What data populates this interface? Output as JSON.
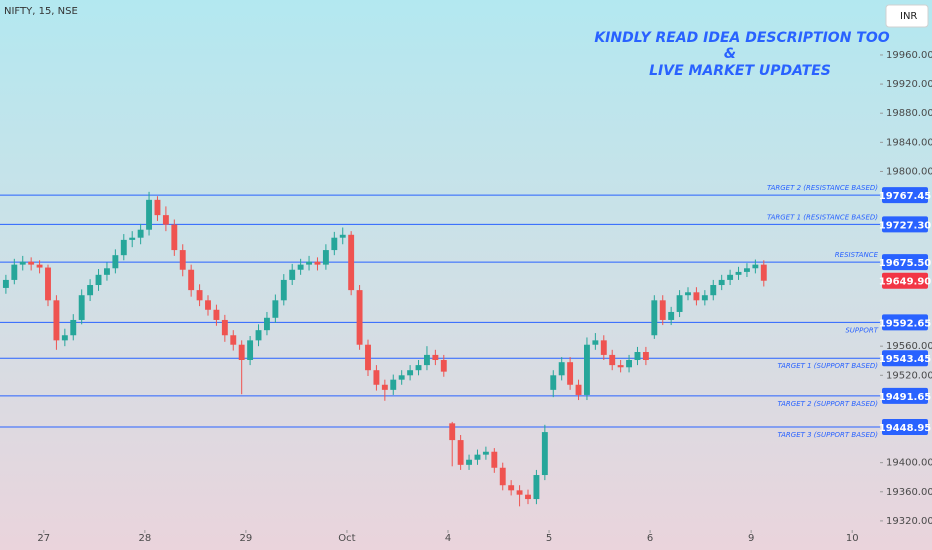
{
  "chart_data": {
    "type": "candlestick",
    "symbol": "NIFTY, 15, NSE",
    "currency": "INR",
    "headline": [
      "KINDLY READ IDEA DESCRIPTION TOO",
      "&",
      "LIVE MARKET UPDATES"
    ],
    "up_color": "#26a69a",
    "down_color": "#ef5350",
    "level_color": "#2962ff",
    "last_price": 19649.9,
    "last_price_label": "19649.90",
    "last_price_color": "#f23645",
    "xlim": [
      -5.2,
      99.3
    ],
    "xticks": [
      {
        "value": 0,
        "label": "27"
      },
      {
        "value": 12,
        "label": "28"
      },
      {
        "value": 24,
        "label": "29"
      },
      {
        "value": 36,
        "label": "Oct"
      },
      {
        "value": 48,
        "label": "4"
      },
      {
        "value": 60,
        "label": "5"
      },
      {
        "value": 72,
        "label": "6"
      },
      {
        "value": 84,
        "label": "9"
      },
      {
        "value": 96,
        "label": "10"
      }
    ],
    "ylim": [
      19307.5,
      20035.5
    ],
    "yticks": [
      {
        "value": 19960,
        "label": "19960.00"
      },
      {
        "value": 19920,
        "label": "19920.00"
      },
      {
        "value": 19880,
        "label": "19880.00"
      },
      {
        "value": 19840,
        "label": "19840.00"
      },
      {
        "value": 19800,
        "label": "19800.00"
      },
      {
        "value": 19560,
        "label": "19560.00"
      },
      {
        "value": 19520,
        "label": "19520.00"
      },
      {
        "value": 19400,
        "label": "19400.00"
      },
      {
        "value": 19360,
        "label": "19360.00"
      },
      {
        "value": 19320,
        "label": "19320.00"
      }
    ],
    "levels": [
      {
        "value": 19767.45,
        "label": "TARGET 2 (RESISTANCE BASED)"
      },
      {
        "value": 19727.3,
        "value_label": "19727.30",
        "label": "TARGET 1 (RESISTANCE BASED)"
      },
      {
        "value": 19675.5,
        "value_label": "19675.50",
        "label": "RESISTANCE"
      },
      {
        "value": 19592.65,
        "label": "SUPPORT"
      },
      {
        "value": 19543.45,
        "label": "TARGET 1 (SUPPORT BASED)"
      },
      {
        "value": 19491.65,
        "label": "TARGET 2 (SUPPORT BASED)"
      },
      {
        "value": 19448.95,
        "label": "TARGET 3 (SUPPORT BASED)"
      }
    ],
    "x": [
      -5,
      -4,
      -3,
      -2,
      -1,
      0,
      1,
      2,
      3,
      4,
      5,
      6,
      7,
      8,
      9,
      10,
      11,
      12,
      13,
      14,
      15,
      16,
      17,
      18,
      19,
      20,
      21,
      22,
      23,
      24,
      25,
      26,
      27,
      28,
      29,
      30,
      31,
      32,
      33,
      34,
      35,
      36,
      37,
      38,
      39,
      40,
      41,
      42,
      43,
      44,
      45,
      46,
      47,
      48,
      49,
      50,
      51,
      52,
      53,
      54,
      55,
      56,
      57,
      58,
      59,
      60,
      61,
      62,
      63,
      64,
      65,
      66,
      67,
      68,
      69,
      70,
      71,
      72,
      73,
      74,
      75,
      76,
      77,
      78,
      79,
      80,
      81,
      82,
      83,
      84,
      85
    ],
    "candles": [
      [
        19640,
        19658,
        19632,
        19651
      ],
      [
        19651,
        19680,
        19645,
        19672
      ],
      [
        19672,
        19684,
        19664,
        19676
      ],
      [
        19676,
        19682,
        19664,
        19672
      ],
      [
        19672,
        19678,
        19660,
        19668
      ],
      [
        19668,
        19672,
        19615,
        19623
      ],
      [
        19623,
        19630,
        19555,
        19568
      ],
      [
        19568,
        19584,
        19560,
        19575
      ],
      [
        19575,
        19604,
        19568,
        19596
      ],
      [
        19596,
        19638,
        19590,
        19630
      ],
      [
        19630,
        19652,
        19622,
        19644
      ],
      [
        19644,
        19666,
        19636,
        19658
      ],
      [
        19658,
        19675,
        19650,
        19667
      ],
      [
        19667,
        19693,
        19660,
        19685
      ],
      [
        19685,
        19714,
        19678,
        19706
      ],
      [
        19706,
        19718,
        19696,
        19709
      ],
      [
        19709,
        19728,
        19700,
        19720
      ],
      [
        19720,
        19772,
        19712,
        19761
      ],
      [
        19761,
        19766,
        19732,
        19740
      ],
      [
        19740,
        19752,
        19718,
        19727
      ],
      [
        19727,
        19734,
        19684,
        19692
      ],
      [
        19692,
        19700,
        19656,
        19665
      ],
      [
        19665,
        19672,
        19628,
        19637
      ],
      [
        19637,
        19645,
        19615,
        19623
      ],
      [
        19623,
        19630,
        19602,
        19610
      ],
      [
        19610,
        19617,
        19588,
        19596
      ],
      [
        19596,
        19603,
        19566,
        19575
      ],
      [
        19575,
        19582,
        19554,
        19562
      ],
      [
        19562,
        19568,
        19494,
        19541
      ],
      [
        19541,
        19574,
        19534,
        19568
      ],
      [
        19568,
        19590,
        19560,
        19582
      ],
      [
        19582,
        19607,
        19575,
        19599
      ],
      [
        19599,
        19631,
        19592,
        19623
      ],
      [
        19623,
        19659,
        19616,
        19651
      ],
      [
        19651,
        19673,
        19644,
        19665
      ],
      [
        19665,
        19680,
        19658,
        19672
      ],
      [
        19672,
        19684,
        19664,
        19676
      ],
      [
        19676,
        19682,
        19664,
        19672
      ],
      [
        19672,
        19700,
        19665,
        19692
      ],
      [
        19692,
        19717,
        19685,
        19709
      ],
      [
        19709,
        19723,
        19700,
        19713
      ],
      [
        19713,
        19718,
        19630,
        19637
      ],
      [
        19637,
        19644,
        19555,
        19562
      ],
      [
        19562,
        19569,
        19519,
        19527
      ],
      [
        19527,
        19534,
        19499,
        19507
      ],
      [
        19507,
        19514,
        19485,
        19500
      ],
      [
        19500,
        19521,
        19493,
        19514
      ],
      [
        19514,
        19527,
        19507,
        19520
      ],
      [
        19520,
        19534,
        19513,
        19527
      ],
      [
        19527,
        19541,
        19520,
        19534
      ],
      [
        19534,
        19560,
        19527,
        19548
      ],
      [
        19548,
        19555,
        19534,
        19541
      ],
      [
        19541,
        19548,
        19518,
        19525
      ],
      [
        19454,
        19456,
        19395,
        19431
      ],
      [
        19431,
        19438,
        19390,
        19397
      ],
      [
        19397,
        19411,
        19390,
        19404
      ],
      [
        19404,
        19418,
        19397,
        19411
      ],
      [
        19411,
        19422,
        19404,
        19415
      ],
      [
        19415,
        19420,
        19386,
        19393
      ],
      [
        19393,
        19400,
        19362,
        19369
      ],
      [
        19369,
        19376,
        19355,
        19362
      ],
      [
        19362,
        19369,
        19340,
        19356
      ],
      [
        19356,
        19363,
        19343,
        19350
      ],
      [
        19350,
        19390,
        19343,
        19383
      ],
      [
        19383,
        19452,
        19376,
        19442
      ],
      [
        19500,
        19527,
        19490,
        19520
      ],
      [
        19520,
        19545,
        19513,
        19538
      ],
      [
        19538,
        19545,
        19500,
        19507
      ],
      [
        19507,
        19514,
        19486,
        19493
      ],
      [
        19493,
        19572,
        19486,
        19562
      ],
      [
        19562,
        19578,
        19555,
        19568
      ],
      [
        19568,
        19575,
        19541,
        19548
      ],
      [
        19548,
        19555,
        19527,
        19534
      ],
      [
        19534,
        19541,
        19524,
        19531
      ],
      [
        19531,
        19548,
        19524,
        19541
      ],
      [
        19541,
        19559,
        19534,
        19552
      ],
      [
        19552,
        19559,
        19534,
        19541
      ],
      [
        19575,
        19630,
        19570,
        19623
      ],
      [
        19623,
        19630,
        19589,
        19596
      ],
      [
        19596,
        19614,
        19589,
        19607
      ],
      [
        19607,
        19637,
        19600,
        19630
      ],
      [
        19630,
        19641,
        19623,
        19634
      ],
      [
        19634,
        19641,
        19616,
        19623
      ],
      [
        19623,
        19637,
        19616,
        19630
      ],
      [
        19630,
        19651,
        19623,
        19644
      ],
      [
        19644,
        19658,
        19637,
        19651
      ],
      [
        19651,
        19665,
        19644,
        19658
      ],
      [
        19658,
        19669,
        19651,
        19662
      ],
      [
        19662,
        19674,
        19655,
        19667
      ],
      [
        19667,
        19679,
        19660,
        19672
      ],
      [
        19672,
        19678,
        19642,
        19649.9
      ]
    ]
  }
}
